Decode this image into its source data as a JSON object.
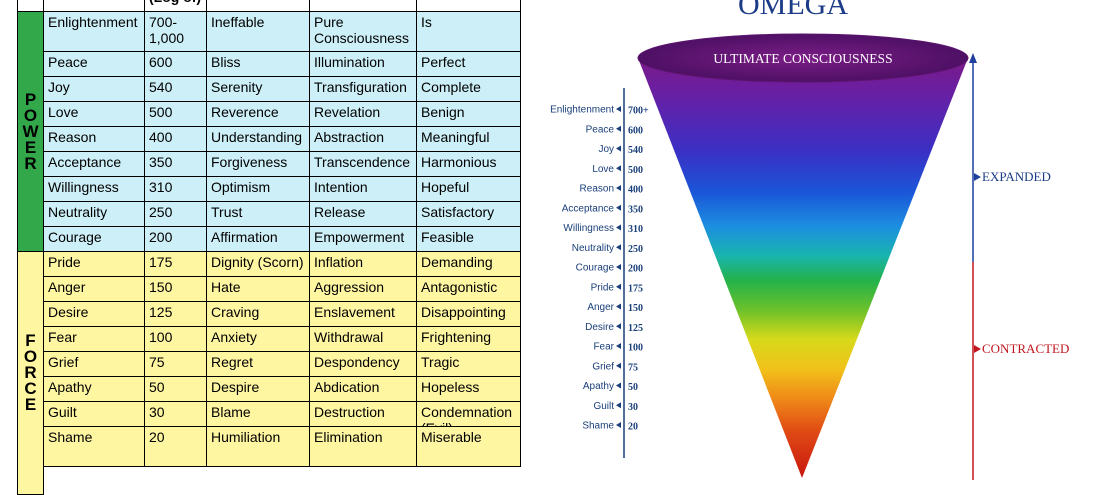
{
  "table": {
    "header": [
      "",
      "",
      "(Log of)",
      "",
      "",
      ""
    ],
    "power_label": "POWER",
    "force_label": "FORCE",
    "rows": [
      {
        "level": "Enlightenment",
        "log": "700-\n1,000",
        "emotion": "Ineffable",
        "process": "Pure\nConsciousness",
        "life_view": "Is",
        "zone": "power"
      },
      {
        "level": "Peace",
        "log": "600",
        "emotion": "Bliss",
        "process": "Illumination",
        "life_view": "Perfect",
        "zone": "power"
      },
      {
        "level": "Joy",
        "log": "540",
        "emotion": "Serenity",
        "process": "Transfiguration",
        "life_view": "Complete",
        "zone": "power"
      },
      {
        "level": "Love",
        "log": "500",
        "emotion": "Reverence",
        "process": "Revelation",
        "life_view": "Benign",
        "zone": "power"
      },
      {
        "level": "Reason",
        "log": "400",
        "emotion": "Understanding",
        "process": "Abstraction",
        "life_view": "Meaningful",
        "zone": "power"
      },
      {
        "level": "Acceptance",
        "log": "350",
        "emotion": "Forgiveness",
        "process": "Transcendence",
        "life_view": "Harmonious",
        "zone": "power"
      },
      {
        "level": "Willingness",
        "log": "310",
        "emotion": "Optimism",
        "process": "Intention",
        "life_view": "Hopeful",
        "zone": "power"
      },
      {
        "level": "Neutrality",
        "log": "250",
        "emotion": "Trust",
        "process": "Release",
        "life_view": "Satisfactory",
        "zone": "power"
      },
      {
        "level": "Courage",
        "log": "200",
        "emotion": "Affirmation",
        "process": "Empowerment",
        "life_view": "Feasible",
        "zone": "power"
      },
      {
        "level": "Pride",
        "log": "175",
        "emotion": "Dignity (Scorn)",
        "process": "Inflation",
        "life_view": "Demanding",
        "zone": "force"
      },
      {
        "level": "Anger",
        "log": "150",
        "emotion": "Hate",
        "process": "Aggression",
        "life_view": "Antagonistic",
        "zone": "force"
      },
      {
        "level": "Desire",
        "log": "125",
        "emotion": "Craving",
        "process": "Enslavement",
        "life_view": "Disappointing",
        "zone": "force"
      },
      {
        "level": "Fear",
        "log": "100",
        "emotion": "Anxiety",
        "process": "Withdrawal",
        "life_view": "Frightening",
        "zone": "force"
      },
      {
        "level": "Grief",
        "log": "75",
        "emotion": "Regret",
        "process": "Despondency",
        "life_view": "Tragic",
        "zone": "force"
      },
      {
        "level": "Apathy",
        "log": "50",
        "emotion": "Despire",
        "process": "Abdication",
        "life_view": "Hopeless",
        "zone": "force"
      },
      {
        "level": "Guilt",
        "log": "30",
        "emotion": "Blame",
        "process": "Destruction",
        "life_view": "Condemnation\n(Evil)",
        "zone": "force"
      },
      {
        "level": "Shame",
        "log": "20",
        "emotion": "Humiliation",
        "process": "Elimination",
        "life_view": "Miserable",
        "zone": "force"
      }
    ]
  },
  "diagram": {
    "title": "OMEGA",
    "cone_label": "ULTIMATE CONSCIOUSNESS",
    "expanded_label": "EXPANDED",
    "contracted_label": "CONTRACTED",
    "levels": [
      {
        "name": "Enlightenment",
        "value": "700+"
      },
      {
        "name": "Peace",
        "value": "600"
      },
      {
        "name": "Joy",
        "value": "540"
      },
      {
        "name": "Love",
        "value": "500"
      },
      {
        "name": "Reason",
        "value": "400"
      },
      {
        "name": "Acceptance",
        "value": "350"
      },
      {
        "name": "Willingness",
        "value": "310"
      },
      {
        "name": "Neutrality",
        "value": "250"
      },
      {
        "name": "Courage",
        "value": "200"
      },
      {
        "name": "Pride",
        "value": "175"
      },
      {
        "name": "Anger",
        "value": "150"
      },
      {
        "name": "Desire",
        "value": "125"
      },
      {
        "name": "Fear",
        "value": "100"
      },
      {
        "name": "Grief",
        "value": "75"
      },
      {
        "name": "Apathy",
        "value": "50"
      },
      {
        "name": "Guilt",
        "value": "30"
      },
      {
        "name": "Shame",
        "value": "20"
      }
    ],
    "colors": {
      "expanded_arrow": "#1f3f9e",
      "contracted_arrow": "#c0161e",
      "label_text": "#1a3f7a",
      "power_band": "#33a84a",
      "power_rows": "#cdeff7",
      "force_rows": "#fff6a2"
    }
  }
}
